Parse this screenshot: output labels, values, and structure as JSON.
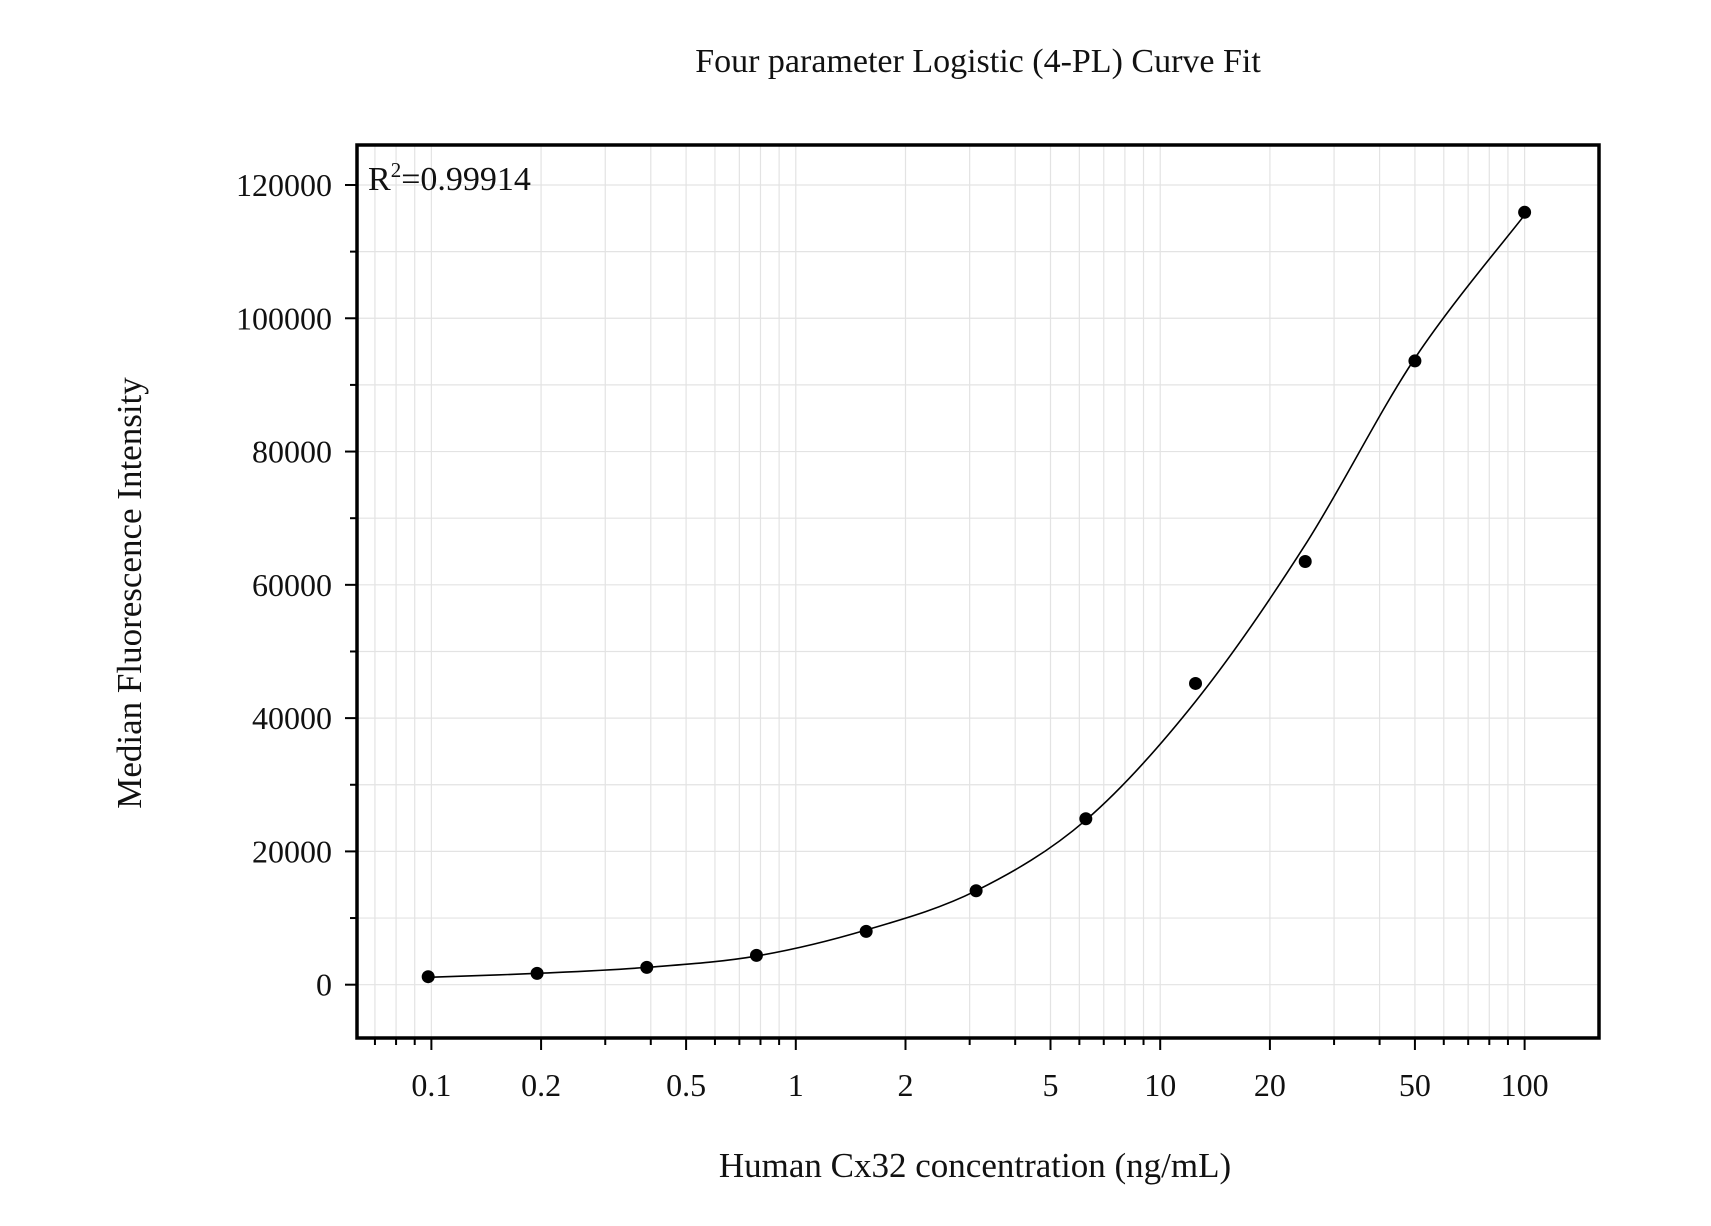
{
  "chart_data": {
    "type": "scatter",
    "title": "Four parameter Logistic (4-PL) Curve Fit",
    "xlabel": "Human Cx32 concentration (ng/mL)",
    "ylabel": "Median Fluorescence Intensity",
    "x_scale": "log",
    "xlim": [
      0.0625,
      160
    ],
    "ylim": [
      -8000,
      126000
    ],
    "grid": true,
    "x_ticks": [
      0.1,
      0.2,
      0.5,
      1,
      2,
      5,
      10,
      20,
      50,
      100
    ],
    "x_tick_labels": [
      "0.1",
      "0.2",
      "0.5",
      "1",
      "2",
      "5",
      "10",
      "20",
      "50",
      "100"
    ],
    "y_ticks": [
      0,
      20000,
      40000,
      60000,
      80000,
      100000,
      120000
    ],
    "y_tick_labels": [
      "0",
      "20000",
      "40000",
      "60000",
      "80000",
      "100000",
      "120000"
    ],
    "annotation": {
      "base": "R",
      "sup": "2",
      "rest": "=0.99914",
      "position": "top-left"
    },
    "series": [
      {
        "type": "scatter",
        "marker": "circle",
        "color": "#000000",
        "x": [
          0.098,
          0.195,
          0.39,
          0.78,
          1.56,
          3.125,
          6.25,
          12.5,
          25,
          50,
          100
        ],
        "y": [
          1200,
          1700,
          2600,
          4400,
          8000,
          14100,
          24900,
          45200,
          63500,
          93600,
          115900
        ]
      },
      {
        "type": "line",
        "color": "#000000",
        "x": [
          0.098,
          0.195,
          0.39,
          0.78,
          1.56,
          3.125,
          6.25,
          12.5,
          25,
          50,
          100
        ],
        "y": [
          1100,
          1700,
          2600,
          4300,
          8200,
          14100,
          24700,
          42500,
          66000,
          94000,
          115500
        ]
      }
    ]
  }
}
